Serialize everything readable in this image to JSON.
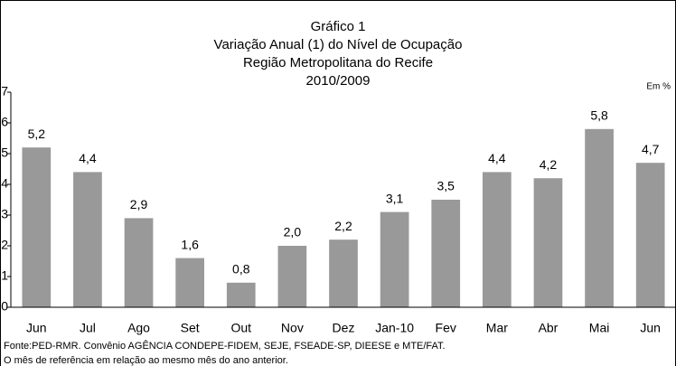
{
  "chart_data": {
    "type": "bar",
    "title": "Gráfico 1",
    "subtitle": [
      "Variação Anual (1) do Nível de Ocupação",
      "Região Metropolitana do Recife",
      "2010/2009"
    ],
    "annotation": "Em %",
    "categories": [
      "Jun",
      "Jul",
      "Ago",
      "Set",
      "Out",
      "Nov",
      "Dez",
      "Jan-10",
      "Fev",
      "Mar",
      "Abr",
      "Mai",
      "Jun"
    ],
    "values": [
      5.2,
      4.4,
      2.9,
      1.6,
      0.8,
      2.0,
      2.2,
      3.1,
      3.5,
      4.4,
      4.2,
      5.8,
      4.7
    ],
    "value_labels": [
      "5,2",
      "4,4",
      "2,9",
      "1,6",
      "0,8",
      "2,0",
      "2,2",
      "3,1",
      "3,5",
      "4,4",
      "4,2",
      "5,8",
      "4,7"
    ],
    "color": "#999999",
    "ylim": [
      0,
      7
    ],
    "yticks": [
      0,
      1,
      2,
      3,
      4,
      5,
      6,
      7
    ],
    "grid": false,
    "notes": [
      "Fonte:PED-RMR. Convênio AGÊNCIA CONDEPE-FIDEM, SEJE, FSEADE-SP, DIEESE e MTE/FAT.",
      "O mês de referência em relação ao mesmo mês do ano anterior."
    ]
  }
}
